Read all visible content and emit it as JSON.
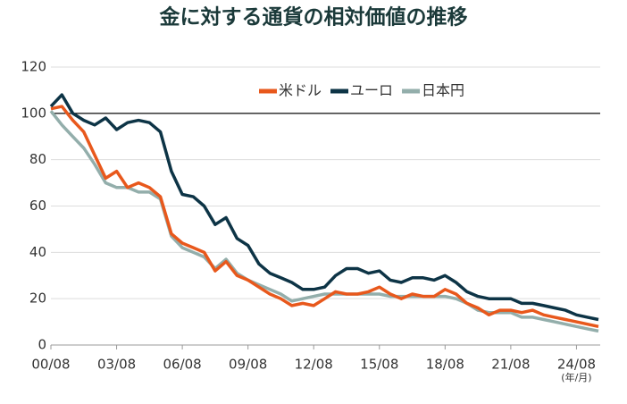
{
  "chart_data": {
    "type": "line",
    "title": "金に対する通貨の相対価値の推移",
    "x": [
      "00/08",
      "01/02",
      "01/08",
      "02/02",
      "02/08",
      "03/02",
      "03/08",
      "04/02",
      "04/08",
      "05/02",
      "05/08",
      "06/02",
      "06/08",
      "07/02",
      "07/08",
      "08/02",
      "08/08",
      "09/02",
      "09/08",
      "10/02",
      "10/08",
      "11/02",
      "11/08",
      "12/02",
      "12/08",
      "13/02",
      "13/08",
      "14/02",
      "14/08",
      "15/02",
      "15/08",
      "16/02",
      "16/08",
      "17/02",
      "17/08",
      "18/02",
      "18/08",
      "19/02",
      "19/08",
      "20/02",
      "20/08",
      "21/02",
      "21/08",
      "22/02",
      "22/08",
      "23/02",
      "23/08",
      "24/02",
      "24/08",
      "25/02",
      "25/08"
    ],
    "series": [
      {
        "name": "日本円",
        "color": "#93aeab",
        "values": [
          101,
          95,
          90,
          85,
          78,
          70,
          68,
          68,
          66,
          66,
          63,
          47,
          42,
          40,
          38,
          33,
          37,
          31,
          28,
          26,
          24,
          22,
          19,
          20,
          21,
          22,
          22,
          22,
          22,
          22,
          22,
          21,
          21,
          21,
          21,
          21,
          21,
          20,
          18,
          15,
          14,
          14,
          14,
          12,
          12,
          11,
          10,
          9,
          8,
          7,
          6
        ]
      },
      {
        "name": "米ドル",
        "color": "#e8581c",
        "values": [
          102,
          103,
          97,
          92,
          82,
          72,
          75,
          68,
          70,
          68,
          64,
          48,
          44,
          42,
          40,
          32,
          36,
          30,
          28,
          25,
          22,
          20,
          17,
          18,
          17,
          20,
          23,
          22,
          22,
          23,
          25,
          22,
          20,
          22,
          21,
          21,
          24,
          22,
          18,
          16,
          13,
          15,
          15,
          14,
          15,
          13,
          12,
          11,
          10,
          9,
          8
        ]
      },
      {
        "name": "ユーロ",
        "color": "#0d3446",
        "values": [
          103,
          108,
          100,
          97,
          95,
          98,
          93,
          96,
          97,
          96,
          92,
          75,
          65,
          64,
          60,
          52,
          55,
          46,
          43,
          35,
          31,
          29,
          27,
          24,
          24,
          25,
          30,
          33,
          33,
          31,
          32,
          28,
          27,
          29,
          29,
          28,
          30,
          27,
          23,
          21,
          20,
          20,
          20,
          18,
          18,
          17,
          16,
          15,
          13,
          12,
          11
        ]
      }
    ],
    "legend_order": [
      1,
      2,
      0
    ],
    "xlim": [
      "00/08",
      "25/09"
    ],
    "xticks": [
      "00/08",
      "03/08",
      "06/08",
      "09/08",
      "12/08",
      "15/08",
      "18/08",
      "21/08",
      "24/08"
    ],
    "x_unit_label": "(年/月)",
    "ylim": [
      0,
      120
    ],
    "yticks": [
      0,
      20,
      40,
      60,
      80,
      100,
      120
    ],
    "reference_line": 100,
    "grid": true
  }
}
